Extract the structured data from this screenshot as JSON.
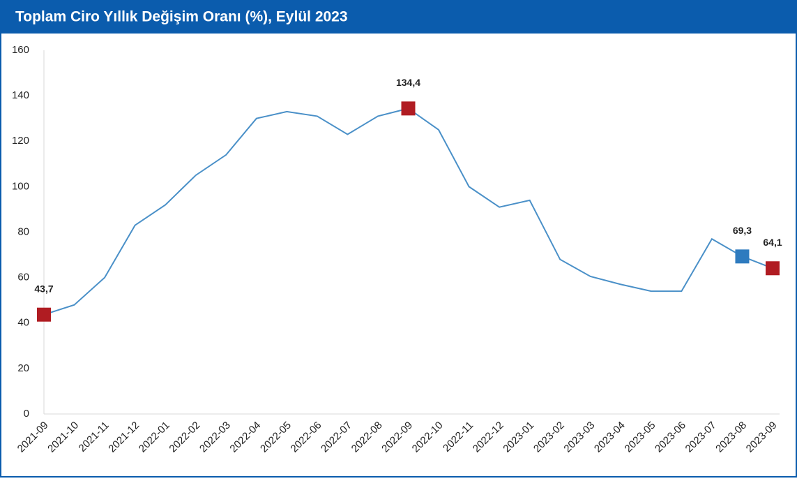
{
  "chart_data": {
    "type": "line",
    "title": "Toplam Ciro Yıllık Değişim Oranı (%), Eylül 2023",
    "categories": [
      "2021-09",
      "2021-10",
      "2021-11",
      "2021-12",
      "2022-01",
      "2022-02",
      "2022-03",
      "2022-04",
      "2022-05",
      "2022-06",
      "2022-07",
      "2022-08",
      "2022-09",
      "2022-10",
      "2022-11",
      "2022-12",
      "2023-01",
      "2023-02",
      "2023-03",
      "2023-04",
      "2023-05",
      "2023-06",
      "2023-07",
      "2023-08",
      "2023-09"
    ],
    "series": [
      {
        "color": "#4a90c8",
        "values": [
          43.7,
          48,
          60,
          83,
          92,
          105,
          114,
          130,
          133,
          131,
          123,
          131,
          134.4,
          125,
          100,
          91,
          94,
          68,
          60.5,
          57,
          54,
          54,
          77,
          69.3,
          64.1
        ],
        "value_labels": [
          "43,7",
          null,
          null,
          null,
          null,
          null,
          null,
          null,
          null,
          null,
          null,
          null,
          "134,4",
          null,
          null,
          null,
          null,
          null,
          null,
          null,
          null,
          null,
          null,
          "69,3",
          "64,1"
        ],
        "marker_colors": [
          "#b01c22",
          null,
          null,
          null,
          null,
          null,
          null,
          null,
          null,
          null,
          null,
          null,
          "#b01c22",
          null,
          null,
          null,
          null,
          null,
          null,
          null,
          null,
          null,
          null,
          "#2e7bbf",
          "#b01c22"
        ]
      }
    ],
    "ylim": [
      0,
      160
    ],
    "yticks": [
      0,
      20,
      40,
      60,
      80,
      100,
      120,
      140,
      160
    ]
  }
}
